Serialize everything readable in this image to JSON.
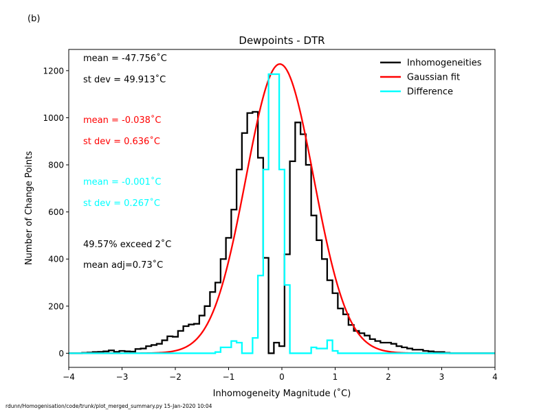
{
  "panel_label": "(b)",
  "footer": "rdunn/Homogenisation/code/trunk/plot_merged_summary.py   15-Jan-2020 10:04",
  "colors": {
    "inhomogeneities": "#000000",
    "gaussian": "#ff0000",
    "difference": "#00ffff"
  },
  "annotations": [
    {
      "text": "mean = -47.756$^\\circ$C",
      "display": "mean = -47.756˚C",
      "color": "#000000"
    },
    {
      "text": "st dev = 49.913$^\\circ$C",
      "display": "st dev = 49.913˚C",
      "color": "#000000"
    },
    {
      "text": "mean = -0.038$^\\circ$C",
      "display": "mean = -0.038˚C",
      "color": "#ff0000"
    },
    {
      "text": "st dev =  0.636$^\\circ$C",
      "display": "st dev =  0.636˚C",
      "color": "#ff0000"
    },
    {
      "text": "mean = -0.001$^\\circ$C",
      "display": "mean = -0.001˚C",
      "color": "#00ffff"
    },
    {
      "text": "st dev =  0.267$^\\circ$C",
      "display": "st dev =  0.267˚C",
      "color": "#00ffff"
    },
    {
      "text": "49.57% exceed 2$^\\circ$C",
      "display": "49.57% exceed 2˚C",
      "color": "#000000"
    },
    {
      "text": "mean adj=0.73$^\\circ$C",
      "display": "mean adj=0.73˚C",
      "color": "#000000"
    }
  ],
  "chart_data": {
    "type": "line",
    "title": "Dewpoints - DTR",
    "xlabel": "Inhomogeneity Magnitude ($^\\circ$C)",
    "xlabel_display": "Inhomogeneity Magnitude (˚C)",
    "ylabel": "Number of Change Points",
    "xlim": [
      -4,
      4
    ],
    "ylim": [
      -60,
      1290
    ],
    "xticks": [
      -4,
      -3,
      -2,
      -1,
      0,
      1,
      2,
      3,
      4
    ],
    "yticks": [
      0,
      200,
      400,
      600,
      800,
      1000,
      1200
    ],
    "legend_position": "top-right",
    "bin_width": 0.1,
    "series": [
      {
        "name": "Inhomogeneities",
        "style": "step",
        "color": "#000000",
        "x": [
          -3.9,
          -3.8,
          -3.7,
          -3.6,
          -3.5,
          -3.4,
          -3.3,
          -3.2,
          -3.1,
          -3.0,
          -2.9,
          -2.8,
          -2.7,
          -2.6,
          -2.5,
          -2.4,
          -2.3,
          -2.2,
          -2.1,
          -2.0,
          -1.9,
          -1.8,
          -1.7,
          -1.6,
          -1.5,
          -1.4,
          -1.3,
          -1.2,
          -1.1,
          -1.0,
          -0.9,
          -0.8,
          -0.7,
          -0.6,
          -0.5,
          -0.4,
          -0.3,
          -0.2,
          -0.1,
          0.0,
          0.1,
          0.2,
          0.3,
          0.4,
          0.5,
          0.6,
          0.7,
          0.8,
          0.9,
          1.0,
          1.1,
          1.2,
          1.3,
          1.4,
          1.5,
          1.6,
          1.7,
          1.8,
          1.9,
          2.0,
          2.1,
          2.2,
          2.3,
          2.4,
          2.5,
          2.6,
          2.7,
          2.8,
          2.9,
          3.0,
          3.1,
          3.2,
          3.3,
          3.4,
          3.5,
          3.6,
          3.7,
          3.8,
          3.9
        ],
        "values": [
          0,
          0,
          2,
          3,
          5,
          6,
          8,
          12,
          6,
          10,
          8,
          7,
          18,
          20,
          30,
          35,
          40,
          55,
          72,
          70,
          95,
          115,
          122,
          125,
          160,
          200,
          260,
          300,
          400,
          490,
          610,
          780,
          935,
          1020,
          1025,
          830,
          405,
          0,
          45,
          30,
          420,
          815,
          980,
          930,
          800,
          585,
          480,
          400,
          310,
          255,
          190,
          165,
          120,
          95,
          85,
          75,
          60,
          52,
          45,
          45,
          40,
          30,
          25,
          20,
          15,
          15,
          10,
          8,
          5,
          5,
          2,
          0,
          0,
          0,
          0,
          0,
          0,
          0,
          0
        ]
      },
      {
        "name": "Gaussian fit",
        "style": "curve",
        "color": "#ff0000",
        "mean": -0.038,
        "stdev": 0.636,
        "amplitude": 1228,
        "x": [
          -2.0,
          -1.8,
          -1.6,
          -1.4,
          -1.2,
          -1.0,
          -0.8,
          -0.6,
          -0.4,
          -0.2,
          -0.1,
          0.0,
          0.1,
          0.2,
          0.4,
          0.6,
          0.8,
          1.0,
          1.2,
          1.4,
          1.6,
          1.8,
          2.0
        ],
        "values": [
          10,
          27,
          61,
          125,
          224,
          368,
          537,
          727,
          878,
          1020,
          1125,
          1228,
          1195,
          1102,
          937,
          742,
          550,
          368,
          224,
          125,
          61,
          27,
          10
        ]
      },
      {
        "name": "Difference",
        "style": "step",
        "color": "#00ffff",
        "x": [
          -3.9,
          -3.8,
          -3.7,
          -3.6,
          -3.5,
          -3.4,
          -3.3,
          -3.2,
          -3.1,
          -3.0,
          -2.9,
          -2.8,
          -2.7,
          -2.6,
          -2.5,
          -2.4,
          -2.3,
          -2.2,
          -2.1,
          -2.0,
          -1.9,
          -1.8,
          -1.7,
          -1.6,
          -1.5,
          -1.4,
          -1.3,
          -1.2,
          -1.1,
          -1.0,
          -0.9,
          -0.8,
          -0.7,
          -0.6,
          -0.5,
          -0.4,
          -0.3,
          -0.2,
          -0.1,
          0.0,
          0.1,
          0.2,
          0.3,
          0.4,
          0.5,
          0.6,
          0.7,
          0.8,
          0.9,
          1.0,
          1.1,
          1.2,
          1.3,
          1.4,
          1.5,
          1.6,
          1.7,
          1.8,
          1.9,
          2.0,
          2.1,
          2.2,
          2.3,
          2.4,
          2.5,
          2.6,
          2.7,
          2.8,
          2.9,
          3.0,
          3.1,
          3.2,
          3.3,
          3.4,
          3.5,
          3.6,
          3.7,
          3.8,
          3.9
        ],
        "values": [
          0,
          0,
          0,
          0,
          0,
          0,
          0,
          0,
          0,
          0,
          0,
          0,
          0,
          0,
          0,
          0,
          0,
          0,
          0,
          0,
          0,
          0,
          0,
          0,
          0,
          0,
          0,
          5,
          25,
          25,
          52,
          45,
          0,
          0,
          65,
          330,
          780,
          1185,
          1185,
          780,
          290,
          0,
          0,
          0,
          0,
          25,
          20,
          20,
          55,
          10,
          0,
          0,
          0,
          0,
          0,
          0,
          0,
          0,
          0,
          0,
          0,
          0,
          0,
          0,
          0,
          0,
          0,
          0,
          0,
          0,
          0,
          0,
          0,
          0,
          0,
          0,
          0,
          0,
          0
        ]
      }
    ]
  }
}
